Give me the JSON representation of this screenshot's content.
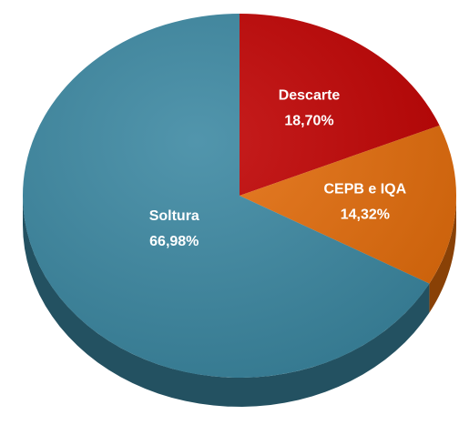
{
  "chart_data": {
    "type": "pie",
    "categories": [
      "Descarte",
      "CEPB e IQA",
      "Soltura"
    ],
    "values": [
      18.7,
      14.32,
      66.98
    ],
    "value_labels": [
      "18,70%",
      "14,32%",
      "66,98%"
    ],
    "colors": [
      "#c00000",
      "#e46c0a",
      "#3a87a1"
    ]
  }
}
